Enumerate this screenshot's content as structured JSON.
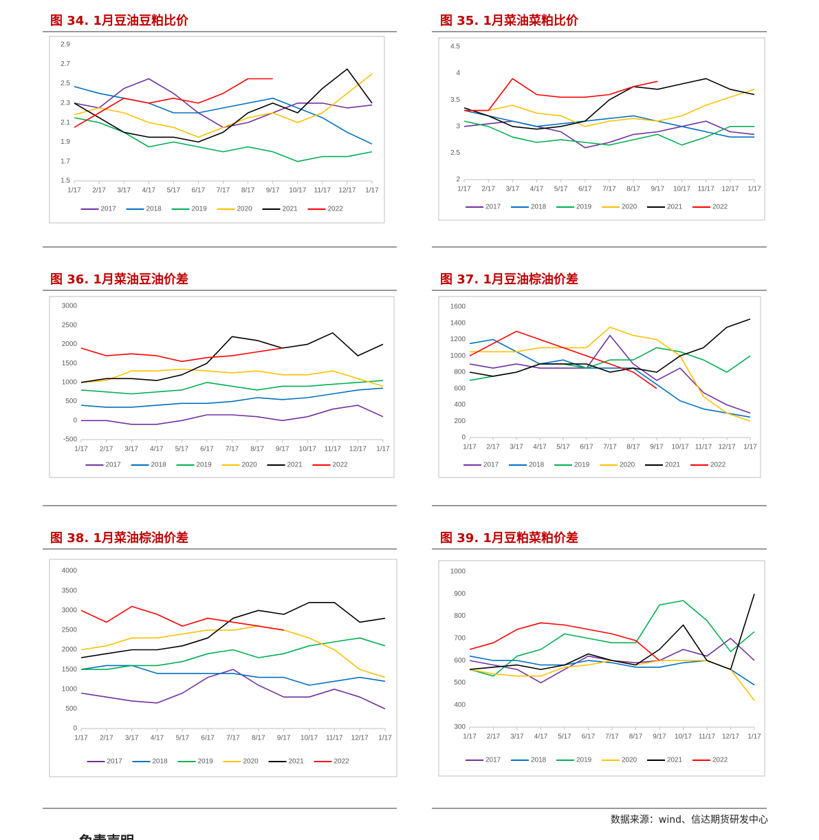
{
  "chart_data": [
    {
      "type": "line",
      "title": "图 34. 1月豆油豆粕比价",
      "categories": [
        "1/17",
        "2/17",
        "3/17",
        "4/17",
        "5/17",
        "6/17",
        "7/17",
        "8/17",
        "9/17",
        "10/17",
        "11/17",
        "12/17",
        "1/17"
      ],
      "ylim": [
        1.5,
        2.9
      ],
      "yticks": [
        1.5,
        1.7,
        1.9,
        2.1,
        2.3,
        2.5,
        2.7,
        2.9
      ],
      "series": [
        {
          "name": "2017",
          "color": "#7030a0",
          "values": [
            2.3,
            2.25,
            2.45,
            2.55,
            2.4,
            2.2,
            2.05,
            2.1,
            2.2,
            2.3,
            2.3,
            2.25,
            2.28
          ]
        },
        {
          "name": "2018",
          "color": "#0070c0",
          "values": [
            2.47,
            2.4,
            2.35,
            2.3,
            2.2,
            2.2,
            2.25,
            2.3,
            2.35,
            2.25,
            2.15,
            2.0,
            1.88
          ]
        },
        {
          "name": "2019",
          "color": "#00b050",
          "values": [
            2.15,
            2.1,
            2.0,
            1.85,
            1.9,
            1.85,
            1.8,
            1.85,
            1.8,
            1.7,
            1.75,
            1.75,
            1.8
          ]
        },
        {
          "name": "2020",
          "color": "#ffc000",
          "values": [
            2.18,
            2.25,
            2.2,
            2.1,
            2.05,
            1.95,
            2.05,
            2.15,
            2.2,
            2.1,
            2.2,
            2.4,
            2.6
          ]
        },
        {
          "name": "2021",
          "color": "#000000",
          "values": [
            2.3,
            2.15,
            2.0,
            1.95,
            1.95,
            1.9,
            2.0,
            2.2,
            2.3,
            2.2,
            2.45,
            2.65,
            2.3
          ]
        },
        {
          "name": "2022",
          "color": "#ff0000",
          "values": [
            2.05,
            2.2,
            2.35,
            2.3,
            2.35,
            2.3,
            2.4,
            2.55,
            2.55,
            null,
            null,
            null,
            null
          ]
        }
      ]
    },
    {
      "type": "line",
      "title": "图 35.  1月菜油菜粕比价",
      "categories": [
        "1/17",
        "2/17",
        "3/17",
        "4/17",
        "5/17",
        "6/17",
        "7/17",
        "8/17",
        "9/17",
        "10/17",
        "11/17",
        "12/17",
        "1/17"
      ],
      "ylim": [
        2,
        4.5
      ],
      "yticks": [
        2,
        2.5,
        3,
        3.5,
        4,
        4.5
      ],
      "series": [
        {
          "name": "2017",
          "color": "#7030a0",
          "values": [
            3.0,
            3.05,
            3.1,
            3.0,
            2.9,
            2.6,
            2.7,
            2.85,
            2.9,
            3.0,
            3.1,
            2.9,
            2.85
          ]
        },
        {
          "name": "2018",
          "color": "#0070c0",
          "values": [
            3.3,
            3.2,
            3.1,
            3.0,
            3.05,
            3.1,
            3.15,
            3.2,
            3.1,
            3.0,
            2.9,
            2.8,
            2.8
          ]
        },
        {
          "name": "2019",
          "color": "#00b050",
          "values": [
            3.1,
            3.0,
            2.8,
            2.7,
            2.75,
            2.7,
            2.65,
            2.75,
            2.85,
            2.65,
            2.8,
            3.0,
            3.0
          ]
        },
        {
          "name": "2020",
          "color": "#ffc000",
          "values": [
            3.3,
            3.3,
            3.4,
            3.25,
            3.2,
            3.0,
            3.1,
            3.15,
            3.1,
            3.2,
            3.4,
            3.55,
            3.7
          ]
        },
        {
          "name": "2021",
          "color": "#000000",
          "values": [
            3.35,
            3.2,
            3.0,
            2.95,
            3.0,
            3.1,
            3.5,
            3.75,
            3.7,
            3.8,
            3.9,
            3.7,
            3.6
          ]
        },
        {
          "name": "2022",
          "color": "#ff0000",
          "values": [
            3.3,
            3.3,
            3.9,
            3.6,
            3.55,
            3.55,
            3.6,
            3.75,
            3.85,
            null,
            null,
            null,
            null
          ]
        }
      ]
    },
    {
      "type": "line",
      "title": "图 36.  1月菜油豆油价差",
      "categories": [
        "1/17",
        "2/17",
        "3/17",
        "4/17",
        "5/17",
        "6/17",
        "7/17",
        "8/17",
        "9/17",
        "10/17",
        "11/17",
        "12/17",
        "1/17"
      ],
      "ylim": [
        -500,
        3000
      ],
      "yticks": [
        -500,
        0,
        500,
        1000,
        1500,
        2000,
        2500,
        3000
      ],
      "series": [
        {
          "name": "2017",
          "color": "#7030a0",
          "values": [
            0,
            0,
            -100,
            -100,
            0,
            150,
            150,
            100,
            0,
            100,
            300,
            400,
            100
          ]
        },
        {
          "name": "2018",
          "color": "#0070c0",
          "values": [
            400,
            350,
            350,
            400,
            450,
            450,
            500,
            600,
            550,
            600,
            700,
            800,
            850
          ]
        },
        {
          "name": "2019",
          "color": "#00b050",
          "values": [
            800,
            750,
            700,
            750,
            800,
            1000,
            900,
            800,
            900,
            900,
            950,
            1000,
            1050
          ]
        },
        {
          "name": "2020",
          "color": "#ffc000",
          "values": [
            1000,
            1050,
            1300,
            1300,
            1350,
            1300,
            1250,
            1300,
            1200,
            1200,
            1300,
            1100,
            900
          ]
        },
        {
          "name": "2021",
          "color": "#000000",
          "values": [
            1000,
            1100,
            1100,
            1050,
            1200,
            1500,
            2200,
            2100,
            1900,
            2000,
            2300,
            1700,
            2000
          ]
        },
        {
          "name": "2022",
          "color": "#ff0000",
          "values": [
            1900,
            1700,
            1750,
            1700,
            1550,
            1650,
            1700,
            1800,
            1900,
            null,
            null,
            null,
            null
          ]
        }
      ]
    },
    {
      "type": "line",
      "title": "图 37. 1月豆油棕油价差",
      "categories": [
        "1/17",
        "2/17",
        "3/17",
        "4/17",
        "5/17",
        "6/17",
        "7/17",
        "8/17",
        "9/17",
        "10/17",
        "11/17",
        "12/17",
        "1/17"
      ],
      "ylim": [
        0,
        1600
      ],
      "yticks": [
        0,
        200,
        400,
        600,
        800,
        1000,
        1200,
        1400,
        1600
      ],
      "series": [
        {
          "name": "2017",
          "color": "#7030a0",
          "values": [
            900,
            850,
            900,
            850,
            850,
            850,
            1250,
            900,
            700,
            850,
            550,
            400,
            300
          ]
        },
        {
          "name": "2018",
          "color": "#0070c0",
          "values": [
            1150,
            1200,
            1050,
            900,
            950,
            850,
            850,
            850,
            650,
            450,
            350,
            300,
            250
          ]
        },
        {
          "name": "2019",
          "color": "#00b050",
          "values": [
            700,
            750,
            800,
            900,
            900,
            850,
            950,
            950,
            1100,
            1050,
            950,
            800,
            1000
          ]
        },
        {
          "name": "2020",
          "color": "#ffc000",
          "values": [
            1050,
            1050,
            1050,
            1100,
            1100,
            1100,
            1350,
            1250,
            1200,
            1000,
            500,
            300,
            200
          ]
        },
        {
          "name": "2021",
          "color": "#000000",
          "values": [
            800,
            750,
            800,
            900,
            900,
            900,
            800,
            850,
            800,
            1000,
            1100,
            1350,
            1450
          ]
        },
        {
          "name": "2022",
          "color": "#ff0000",
          "values": [
            1000,
            1150,
            1300,
            1200,
            1100,
            1000,
            900,
            800,
            600,
            null,
            null,
            null,
            null
          ]
        }
      ]
    },
    {
      "type": "line",
      "title": "图 38.  1月菜油棕油价差",
      "categories": [
        "1/17",
        "2/17",
        "3/17",
        "4/17",
        "5/17",
        "6/17",
        "7/17",
        "8/17",
        "9/17",
        "10/17",
        "11/17",
        "12/17",
        "1/17"
      ],
      "ylim": [
        0,
        4000
      ],
      "yticks": [
        0,
        500,
        1000,
        1500,
        2000,
        2500,
        3000,
        3500,
        4000
      ],
      "series": [
        {
          "name": "2017",
          "color": "#7030a0",
          "values": [
            900,
            800,
            700,
            650,
            900,
            1300,
            1500,
            1100,
            800,
            800,
            1000,
            800,
            500
          ]
        },
        {
          "name": "2018",
          "color": "#0070c0",
          "values": [
            1500,
            1600,
            1600,
            1400,
            1400,
            1400,
            1400,
            1300,
            1300,
            1100,
            1200,
            1300,
            1200
          ]
        },
        {
          "name": "2019",
          "color": "#00b050",
          "values": [
            1500,
            1500,
            1600,
            1600,
            1700,
            1900,
            2000,
            1800,
            1900,
            2100,
            2200,
            2300,
            2100
          ]
        },
        {
          "name": "2020",
          "color": "#ffc000",
          "values": [
            2000,
            2100,
            2300,
            2300,
            2400,
            2500,
            2500,
            2600,
            2500,
            2300,
            2000,
            1500,
            1300
          ]
        },
        {
          "name": "2021",
          "color": "#000000",
          "values": [
            1800,
            1900,
            2000,
            2000,
            2100,
            2300,
            2800,
            3000,
            2900,
            3200,
            3200,
            2700,
            2800
          ]
        },
        {
          "name": "2022",
          "color": "#ff0000",
          "values": [
            3000,
            2700,
            3100,
            2900,
            2600,
            2800,
            2700,
            2600,
            2500,
            null,
            null,
            null,
            null
          ]
        }
      ]
    },
    {
      "type": "line",
      "title": "图 39.  1月豆粕菜粕价差",
      "categories": [
        "1/17",
        "2/17",
        "3/17",
        "4/17",
        "5/17",
        "6/17",
        "7/17",
        "8/17",
        "9/17",
        "10/17",
        "11/17",
        "12/17",
        "1/17"
      ],
      "ylim": [
        300,
        1000
      ],
      "yticks": [
        300,
        400,
        500,
        600,
        700,
        800,
        900,
        1000
      ],
      "series": [
        {
          "name": "2017",
          "color": "#7030a0",
          "values": [
            600,
            580,
            560,
            500,
            560,
            620,
            600,
            590,
            600,
            650,
            620,
            700,
            600
          ]
        },
        {
          "name": "2018",
          "color": "#0070c0",
          "values": [
            620,
            600,
            600,
            580,
            580,
            600,
            590,
            570,
            570,
            590,
            600,
            560,
            490
          ]
        },
        {
          "name": "2019",
          "color": "#00b050",
          "values": [
            560,
            530,
            620,
            650,
            720,
            700,
            680,
            680,
            850,
            870,
            780,
            640,
            730
          ]
        },
        {
          "name": "2020",
          "color": "#ffc000",
          "values": [
            560,
            540,
            530,
            530,
            570,
            580,
            600,
            580,
            600,
            600,
            600,
            560,
            420
          ]
        },
        {
          "name": "2021",
          "color": "#000000",
          "values": [
            560,
            570,
            580,
            560,
            580,
            630,
            600,
            580,
            650,
            760,
            600,
            560,
            900
          ]
        },
        {
          "name": "2022",
          "color": "#ff0000",
          "values": [
            650,
            680,
            740,
            770,
            760,
            740,
            720,
            690,
            600,
            null,
            null,
            null,
            null
          ]
        }
      ]
    }
  ],
  "source": "数据来源：wind、信达期货研发中心",
  "footer_heading": "免责声明"
}
